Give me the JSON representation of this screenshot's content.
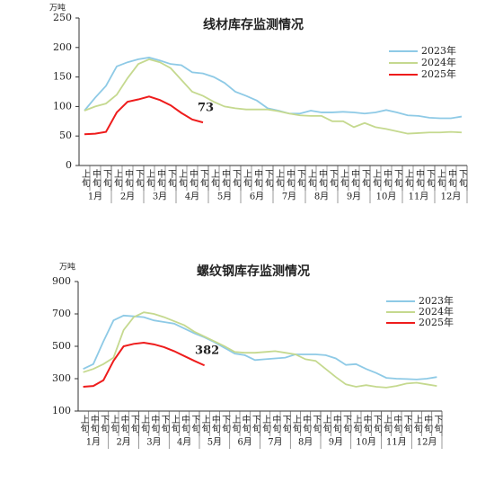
{
  "chart_data": [
    {
      "type": "line",
      "title": "线材库存监测情况",
      "y_unit": "万吨",
      "categories": [
        "上旬",
        "中旬",
        "下旬",
        "上旬",
        "中旬",
        "下旬",
        "上旬",
        "中旬",
        "下旬",
        "上旬",
        "中旬",
        "下旬",
        "上旬",
        "中旬",
        "下旬",
        "上旬",
        "中旬",
        "下旬",
        "上旬",
        "中旬",
        "下旬",
        "上旬",
        "中旬",
        "下旬",
        "上旬",
        "中旬",
        "下旬",
        "上旬",
        "中旬",
        "下旬",
        "上旬",
        "中旬",
        "下旬",
        "上旬",
        "中旬",
        "下旬"
      ],
      "groups": [
        "1月",
        "2月",
        "3月",
        "4月",
        "5月",
        "6月",
        "7月",
        "8月",
        "9月",
        "10月",
        "11月",
        "12月"
      ],
      "ylim": [
        0,
        250
      ],
      "yticks": [
        0,
        50,
        100,
        150,
        200,
        250
      ],
      "grid": false,
      "legend": "upper right",
      "series": [
        {
          "name": "2023年",
          "color": "#8ecae6",
          "values": [
            93,
            115,
            135,
            168,
            175,
            180,
            183,
            178,
            172,
            170,
            158,
            156,
            150,
            140,
            125,
            118,
            110,
            97,
            93,
            88,
            88,
            93,
            90,
            90,
            91,
            90,
            88,
            90,
            94,
            90,
            85,
            84,
            81,
            80,
            80,
            83
          ]
        },
        {
          "name": "2024年",
          "color": "#c5d98f",
          "values": [
            93,
            100,
            105,
            120,
            148,
            172,
            180,
            175,
            165,
            145,
            125,
            118,
            108,
            100,
            97,
            95,
            95,
            95,
            92,
            88,
            85,
            84,
            84,
            75,
            75,
            65,
            72,
            65,
            62,
            58,
            54,
            55,
            56,
            56,
            57,
            56
          ]
        },
        {
          "name": "2025年",
          "color": "#ee1c1c",
          "label_last": true,
          "values": [
            53,
            54,
            57,
            90,
            108,
            112,
            117,
            111,
            102,
            89,
            78,
            73,
            null,
            null,
            null,
            null,
            null,
            null,
            null,
            null,
            null,
            null,
            null,
            null,
            null,
            null,
            null,
            null,
            null,
            null,
            null,
            null,
            null,
            null,
            null,
            null
          ]
        }
      ]
    },
    {
      "type": "line",
      "title": "螺纹钢库存监测情况",
      "y_unit": "万吨",
      "categories": [
        "上旬",
        "中旬",
        "下旬",
        "上旬",
        "中旬",
        "下旬",
        "上旬",
        "中旬",
        "下旬",
        "上旬",
        "中旬",
        "下旬",
        "上旬",
        "中旬",
        "下旬",
        "上旬",
        "中旬",
        "下旬",
        "上旬",
        "中旬",
        "下旬",
        "上旬",
        "中旬",
        "下旬",
        "上旬",
        "中旬",
        "下旬",
        "上旬",
        "中旬",
        "下旬",
        "上旬",
        "中旬",
        "下旬",
        "上旬",
        "中旬",
        "下旬"
      ],
      "groups": [
        "1月",
        "2月",
        "3月",
        "4月",
        "5月",
        "6月",
        "7月",
        "8月",
        "9月",
        "10月",
        "11月",
        "12月"
      ],
      "ylim": [
        100,
        900
      ],
      "yticks": [
        100,
        300,
        500,
        700,
        900
      ],
      "grid": false,
      "legend": "upper right",
      "series": [
        {
          "name": "2023年",
          "color": "#8ecae6",
          "values": [
            360,
            390,
            530,
            660,
            690,
            685,
            680,
            660,
            650,
            640,
            610,
            580,
            555,
            525,
            490,
            455,
            445,
            415,
            420,
            425,
            430,
            450,
            450,
            450,
            445,
            425,
            385,
            390,
            360,
            335,
            305,
            300,
            298,
            295,
            300,
            310
          ]
        },
        {
          "name": "2024年",
          "color": "#c5d98f",
          "values": [
            340,
            360,
            390,
            430,
            600,
            680,
            710,
            700,
            680,
            655,
            630,
            590,
            560,
            530,
            500,
            465,
            460,
            460,
            465,
            470,
            460,
            450,
            420,
            410,
            360,
            310,
            265,
            250,
            260,
            250,
            245,
            255,
            270,
            275,
            265,
            255
          ]
        },
        {
          "name": "2025年",
          "color": "#ee1c1c",
          "label_last": true,
          "values": [
            250,
            255,
            290,
            410,
            500,
            515,
            522,
            512,
            495,
            470,
            440,
            410,
            382,
            null,
            null,
            null,
            null,
            null,
            null,
            null,
            null,
            null,
            null,
            null,
            null,
            null,
            null,
            null,
            null,
            null,
            null,
            null,
            null,
            null,
            null,
            null
          ]
        }
      ]
    }
  ]
}
